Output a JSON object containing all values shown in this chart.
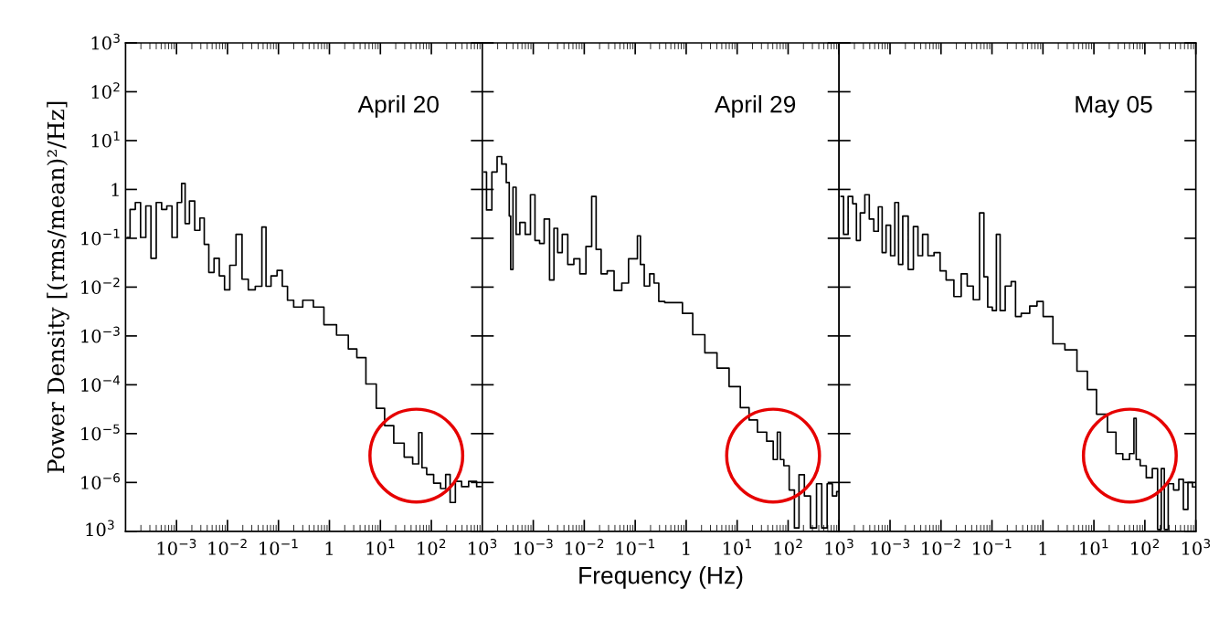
{
  "chart_data": [
    {
      "type": "step",
      "title": "April 20",
      "ylabel": "Power Density [(rms/mean)²/Hz]",
      "log": "xy",
      "xlim": [
        0.0001,
        1000
      ],
      "ylim": [
        1e-07,
        1000
      ],
      "xticks": [
        {
          "value": 0.001,
          "label": "10$^{−3}$"
        },
        {
          "value": 0.01,
          "label": "10$^{−2}$"
        },
        {
          "value": 0.1,
          "label": "10$^{−1}$"
        },
        1,
        {
          "value": 10,
          "label": "10$^{1}$"
        },
        {
          "value": 100,
          "label": "10$^{2}$"
        },
        {
          "value": 1000,
          "label": "10$^{3}$"
        }
      ],
      "annotations": [
        "10$^{3}$"
      ],
      "yticks": [
        {
          "value": 1e-07,
          "label": null
        },
        {
          "value": 1e-06,
          "label": "10$^{−6}$"
        },
        {
          "value": 1e-05,
          "label": "10$^{−5}$"
        },
        {
          "value": 0.0001,
          "label": "10$^{−4}$"
        },
        {
          "value": 0.001,
          "label": "10$^{−3}$"
        },
        {
          "value": 0.01,
          "label": "10$^{−2}$"
        },
        {
          "value": 0.1,
          "label": "10$^{−1}$"
        },
        1,
        {
          "value": 10,
          "label": "10$^{1}$"
        },
        {
          "value": 100,
          "label": "10$^{2}$"
        },
        {
          "value": 1000,
          "label": "10$^{3}$"
        }
      ],
      "x": [
        0.000108,
        0.000137,
        0.000174,
        0.00022,
        0.00028,
        0.00035,
        0.00045,
        0.00057,
        0.00072,
        0.00091,
        0.00116,
        0.00136,
        0.00159,
        0.002,
        0.00255,
        0.0032,
        0.0038,
        0.0048,
        0.0061,
        0.0077,
        0.0098,
        0.0124,
        0.017,
        0.0216,
        0.0296,
        0.0406,
        0.054,
        0.06,
        0.083,
        0.105,
        0.133,
        0.168,
        0.23,
        0.37,
        0.6,
        0.96,
        1.8,
        2.9,
        4.0,
        6.4,
        10.2,
        14,
        22.6,
        36,
        50,
        63,
        68,
        94,
        128,
        176,
        206,
        261,
        331,
        454,
        624,
        925
      ],
      "series": [
        {
          "color": "#000000",
          "values": [
            0.104,
            0.39,
            0.54,
            0.104,
            0.46,
            0.039,
            0.54,
            0.39,
            0.46,
            0.104,
            0.54,
            1.33,
            0.2,
            0.58,
            0.145,
            0.26,
            0.075,
            0.02,
            0.039,
            0.017,
            0.0088,
            0.028,
            0.12,
            0.0145,
            0.0088,
            0.0104,
            0.17,
            0.0104,
            0.017,
            0.022,
            0.0104,
            0.0054,
            0.0039,
            0.0054,
            0.0039,
            0.0017,
            0.00104,
            0.00054,
            0.00036,
            0.000104,
            3.3e-05,
            1.46e-05,
            6.4e-06,
            3.3e-06,
            2.4e-06,
            1.05e-05,
            2e-06,
            1.46e-06,
            9.7e-07,
            7.5e-07,
            1.46e-06,
            3.9e-07,
            1.05e-06,
            8.2e-07,
            1.05e-06,
            8.2e-07
          ]
        }
      ]
    },
    {
      "type": "step",
      "title": "April 29",
      "xlabel": "Frequency (Hz)",
      "log": "xy",
      "xlim": [
        0.0001,
        1000
      ],
      "ylim": [
        1e-07,
        1000
      ],
      "tick_labels": "x",
      "xticks": [
        {
          "value": 0.001,
          "label": "10$^{−3}$"
        },
        {
          "value": 0.01,
          "label": "10$^{−2}$"
        },
        {
          "value": 0.1,
          "label": "10$^{−1}$"
        },
        1,
        {
          "value": 10,
          "label": "10$^{1}$"
        },
        {
          "value": 100,
          "label": "10$^{2}$"
        },
        {
          "value": 1000,
          "label": "10$^{3}$"
        }
      ],
      "yticks": [
        {
          "value": 1e-07,
          "label": null
        },
        {
          "value": 1e-06,
          "label": null
        },
        {
          "value": 1e-05,
          "label": null
        },
        {
          "value": 0.0001,
          "label": null
        },
        {
          "value": 0.001,
          "label": null
        },
        {
          "value": 0.01,
          "label": null
        },
        {
          "value": 0.1,
          "label": null
        },
        {
          "value": 1,
          "label": null
        },
        {
          "value": 10,
          "label": null
        },
        {
          "value": 100,
          "label": null
        },
        {
          "value": 1000,
          "label": null
        }
      ],
      "x": [
        0.000109,
        0.000133,
        0.000175,
        0.000215,
        0.000265,
        0.000325,
        0.00035,
        0.00037,
        0.00043,
        0.00049,
        0.0006,
        0.00079,
        0.00097,
        0.00119,
        0.00147,
        0.0018,
        0.00237,
        0.00272,
        0.0033,
        0.0041,
        0.0054,
        0.0071,
        0.0093,
        0.0123,
        0.0157,
        0.0185,
        0.0244,
        0.032,
        0.045,
        0.064,
        0.084,
        0.103,
        0.118,
        0.135,
        0.166,
        0.218,
        0.25,
        0.33,
        0.43,
        0.7,
        0.99,
        1.7,
        2.95,
        5.1,
        8.8,
        14.3,
        20,
        30,
        46,
        56,
        67,
        74,
        91,
        119,
        147,
        180,
        237,
        312,
        410,
        504,
        662,
        815,
        980
      ],
      "series": [
        {
          "color": "#000000",
          "values": [
            2.28,
            0.38,
            2.28,
            4.7,
            3.3,
            1.38,
            0.285,
            0.023,
            1.11,
            0.12,
            0.21,
            0.12,
            0.78,
            0.09,
            0.078,
            0.247,
            0.014,
            0.16,
            0.051,
            0.12,
            0.029,
            0.038,
            0.0187,
            0.068,
            0.72,
            0.059,
            0.0187,
            0.0215,
            0.0085,
            0.0121,
            0.038,
            0.038,
            0.112,
            0.029,
            0.0105,
            0.0187,
            0.0121,
            0.0051,
            0.0048,
            0.0048,
            0.0029,
            0.00106,
            0.00045,
            0.00022,
            9.2e-05,
            3.4e-05,
            1.9e-05,
            1.07e-05,
            7e-06,
            2.95e-06,
            1.07e-05,
            2.95e-06,
            2.2e-06,
            7e-07,
            1.17e-07,
            1.44e-06,
            5.3e-07,
            1.17e-07,
            9.4e-07,
            1.17e-07,
            9.4e-07,
            5.3e-07,
            6.5e-07
          ]
        }
      ]
    },
    {
      "type": "step",
      "title": "May 05",
      "log": "xy",
      "xlim": [
        0.0001,
        1000
      ],
      "ylim": [
        1e-07,
        1000
      ],
      "tick_labels": "x",
      "xticks": [
        {
          "value": 0.001,
          "label": "10$^{−3}$"
        },
        {
          "value": 0.01,
          "label": "10$^{−2}$"
        },
        {
          "value": 0.1,
          "label": "10$^{−1}$"
        },
        1,
        {
          "value": 10,
          "label": "10$^{1}$"
        },
        {
          "value": 100,
          "label": "10$^{2}$"
        },
        {
          "value": 1000,
          "label": "10$^{3}$"
        }
      ],
      "yticks": [
        {
          "value": 1e-07,
          "label": null
        },
        {
          "value": 1e-06,
          "label": null
        },
        {
          "value": 1e-05,
          "label": null
        },
        {
          "value": 0.0001,
          "label": null
        },
        {
          "value": 0.001,
          "label": null
        },
        {
          "value": 0.01,
          "label": null
        },
        {
          "value": 0.1,
          "label": null
        },
        {
          "value": 1,
          "label": null
        },
        {
          "value": 10,
          "label": null
        },
        {
          "value": 100,
          "label": null
        },
        {
          "value": 1000,
          "label": null
        }
      ],
      "x": [
        0.00011,
        0.000135,
        0.000166,
        0.000204,
        0.000234,
        0.000287,
        0.000353,
        0.00043,
        0.00053,
        0.00065,
        0.00075,
        0.00092,
        0.00113,
        0.00135,
        0.00159,
        0.00196,
        0.00258,
        0.00316,
        0.0039,
        0.0048,
        0.0063,
        0.0083,
        0.0109,
        0.0143,
        0.0215,
        0.0283,
        0.037,
        0.049,
        0.065,
        0.074,
        0.091,
        0.112,
        0.132,
        0.157,
        0.207,
        0.27,
        0.31,
        0.44,
        0.66,
        0.87,
        1.15,
        1.99,
        3.4,
        5.9,
        9.0,
        13.5,
        23.4,
        30.8,
        43,
        57,
        65,
        70,
        92,
        121,
        159,
        196,
        224,
        258,
        316,
        416,
        511,
        628,
        771,
        946
      ],
      "series": [
        {
          "color": "#000000",
          "values": [
            0.72,
            0.12,
            0.72,
            0.51,
            0.09,
            0.33,
            0.78,
            0.247,
            0.139,
            0.44,
            0.051,
            0.185,
            0.044,
            0.54,
            0.029,
            0.285,
            0.023,
            0.173,
            0.044,
            0.12,
            0.044,
            0.051,
            0.0215,
            0.014,
            0.0064,
            0.0187,
            0.0105,
            0.0055,
            0.33,
            0.0162,
            0.0039,
            0.0033,
            0.12,
            0.0033,
            0.0105,
            0.013,
            0.0025,
            0.0029,
            0.0041,
            0.0051,
            0.0025,
            0.00069,
            0.00052,
            0.00019,
            8e-05,
            2.5e-05,
            1.07e-05,
            3.9e-06,
            2.95e-06,
            3.9e-06,
            2.05e-05,
            2.95e-06,
            2.2e-06,
            1.25e-06,
            1.92e-06,
            1.09e-07,
            1.92e-06,
            1.09e-07,
            9.4e-07,
            7e-07,
            1.16e-06,
            2.8e-07,
            1e-06,
            8.1e-07
          ]
        }
      ]
    }
  ]
}
